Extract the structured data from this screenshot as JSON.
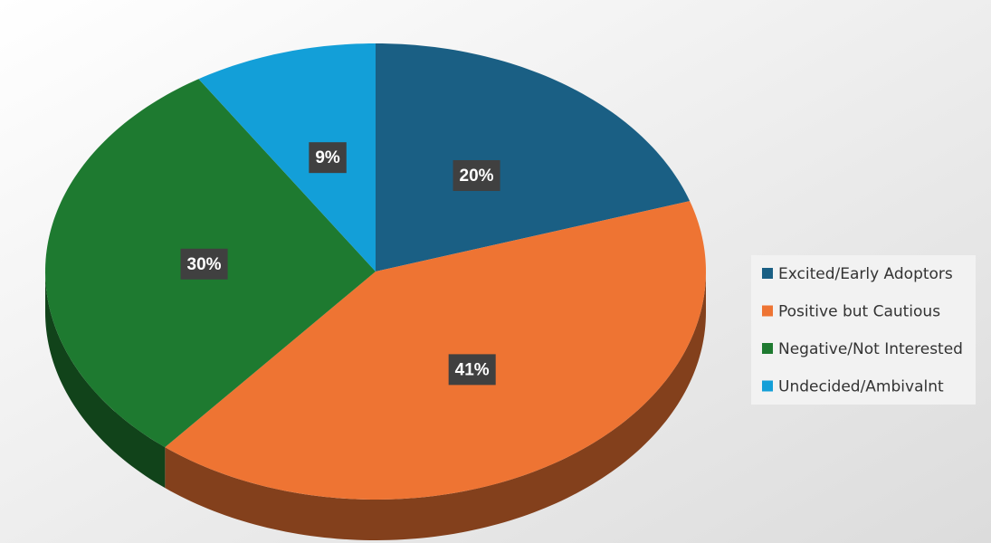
{
  "chart_data": {
    "type": "pie",
    "categories": [
      "Excited/Early Adoptors",
      "Positive but Cautious",
      "Negative/Not Interested",
      "Undecided/Ambivalnt"
    ],
    "values": [
      20,
      41,
      30,
      9
    ],
    "value_labels": [
      "20%",
      "41%",
      "30%",
      "9%"
    ],
    "colors": [
      "#1a5f84",
      "#ee7433",
      "#1e7a30",
      "#139fd8"
    ],
    "legend": "right"
  }
}
